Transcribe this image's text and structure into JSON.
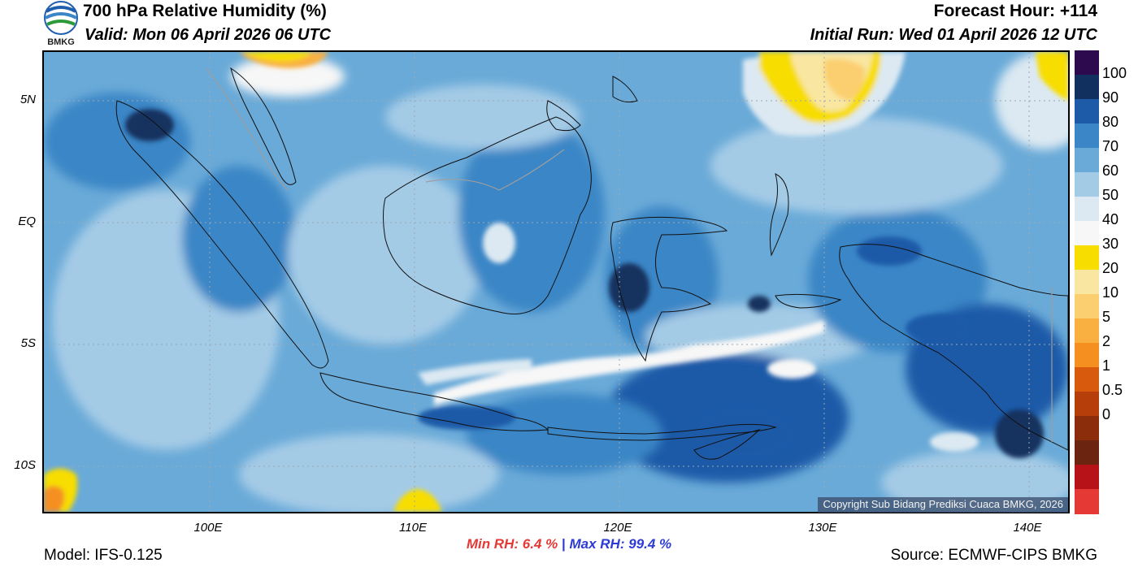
{
  "header": {
    "title": "700 hPa Relative Humidity (%)",
    "valid": "Valid: Mon 06 April 2026 06 UTC",
    "forecast_hour": "Forecast Hour: +114",
    "initial_run": "Initial Run: Wed 01 April 2026 12 UTC",
    "logo_text": "BMKG"
  },
  "map": {
    "lat_labels": [
      "5N",
      "EQ",
      "5S",
      "10S"
    ],
    "lon_labels": [
      "100E",
      "110E",
      "120E",
      "130E",
      "140E"
    ],
    "copyright": "Copyright Sub Bidang Prediksi Cuaca BMKG, 2026"
  },
  "colorbar": {
    "labels": [
      "100",
      "90",
      "80",
      "70",
      "60",
      "50",
      "40",
      "30",
      "20",
      "10",
      "5",
      "2",
      "1",
      "0.5",
      "0"
    ],
    "colors": [
      "#2d0a4e",
      "#12305f",
      "#1d5aa8",
      "#3a86c6",
      "#6aaad8",
      "#a4cbe6",
      "#dce9f2",
      "#f7f7f7",
      "#f7dd00",
      "#f9e6a0",
      "#fbcf70",
      "#f9b040",
      "#f58f20",
      "#d85a0c",
      "#b53e0a",
      "#8b2d0b",
      "#6a2410",
      "#b71218",
      "#e53935"
    ]
  },
  "footer": {
    "model": "Model: IFS-0.125",
    "source": "Source: ECMWF-CIPS BMKG",
    "min_rh_label": "Min RH:",
    "min_rh_value": "6.4 %",
    "separator": "|",
    "max_rh_label": "Max RH:",
    "max_rh_value": "99.4 %"
  }
}
